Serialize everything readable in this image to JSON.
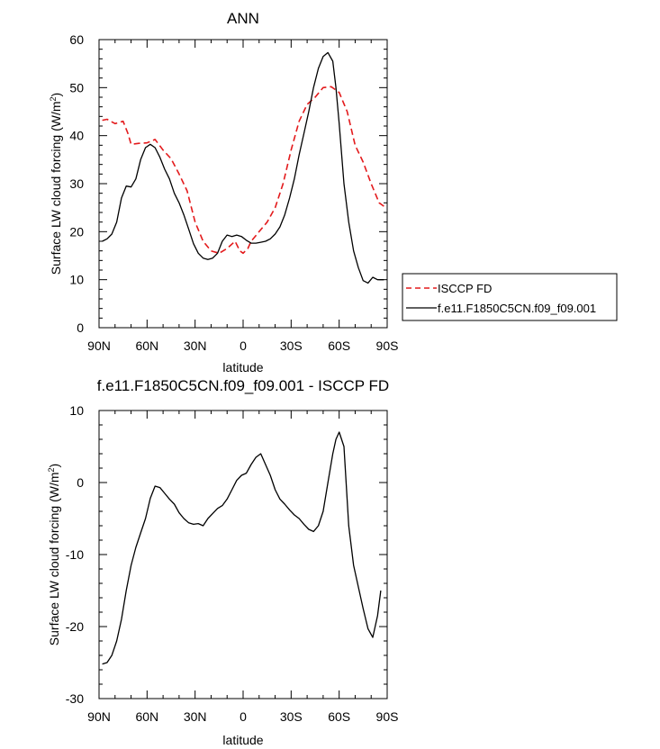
{
  "chart_data": [
    {
      "type": "line",
      "title": "ANN",
      "xlabel": "latitude",
      "ylabel": "Surface LW cloud forcing (W/m",
      "ylabel_sup": "2",
      "ylabel_close": ")",
      "xlim": [
        90,
        -90
      ],
      "ylim": [
        0,
        60
      ],
      "x_ticks": [
        90,
        60,
        30,
        0,
        -30,
        -60,
        -90
      ],
      "x_tick_labels": [
        "90N",
        "60N",
        "30N",
        "0",
        "30S",
        "60S",
        "90S"
      ],
      "y_ticks": [
        0,
        10,
        20,
        30,
        40,
        50,
        60
      ],
      "y_tick_labels": [
        "0",
        "10",
        "20",
        "30",
        "40",
        "50",
        "60"
      ],
      "legend_position": "right",
      "series": [
        {
          "name": "ISCCP FD",
          "color": "#e31a1c",
          "dash": "dashed",
          "x": [
            88,
            85,
            80,
            75,
            72,
            70,
            65,
            60,
            55,
            50,
            45,
            40,
            35,
            30,
            25,
            20,
            15,
            10,
            5,
            2,
            0,
            -3,
            -5,
            -10,
            -15,
            -20,
            -25,
            -30,
            -35,
            -40,
            -45,
            -50,
            -55,
            -60,
            -65,
            -70,
            -75,
            -80,
            -85,
            -88
          ],
          "values": [
            43.2,
            43.4,
            42.5,
            43.0,
            40.5,
            38.2,
            38.4,
            38.5,
            39.2,
            37.0,
            35.2,
            32.0,
            28.5,
            22.0,
            18.0,
            16.0,
            15.5,
            16.5,
            18.0,
            16.0,
            15.5,
            16.5,
            18.0,
            20.0,
            22.0,
            25.0,
            30.0,
            37.0,
            43.0,
            46.5,
            48.0,
            50.0,
            50.2,
            49.0,
            45.0,
            38.0,
            34.5,
            30.0,
            26.0,
            25.3
          ]
        },
        {
          "name": "f.e11.F1850C5CN.f09_f09.001",
          "color": "#000000",
          "dash": "solid",
          "x": [
            88,
            85,
            82,
            79,
            76,
            73,
            70,
            67,
            64,
            61,
            58,
            55,
            52,
            49,
            46,
            43,
            40,
            37,
            34,
            31,
            28,
            25,
            22,
            19,
            16,
            13,
            10,
            7,
            4,
            1,
            -2,
            -5,
            -8,
            -11,
            -14,
            -17,
            -20,
            -23,
            -26,
            -29,
            -32,
            -35,
            -38,
            -41,
            -44,
            -47,
            -50,
            -53,
            -56,
            -58,
            -60,
            -63,
            -66,
            -69,
            -72,
            -75,
            -78,
            -81,
            -84,
            -86,
            -88
          ],
          "values": [
            18.0,
            18.5,
            19.5,
            22.0,
            27.0,
            29.5,
            29.3,
            31.0,
            35.0,
            37.5,
            38.2,
            37.5,
            35.5,
            33.0,
            31.0,
            28.0,
            26.0,
            23.5,
            20.5,
            17.5,
            15.5,
            14.5,
            14.2,
            14.5,
            15.5,
            18.0,
            19.3,
            19.0,
            19.3,
            19.0,
            18.2,
            17.6,
            17.6,
            17.8,
            18.0,
            18.5,
            19.5,
            21.0,
            23.5,
            27.0,
            31.0,
            36.0,
            40.5,
            45.0,
            50.0,
            54.0,
            56.5,
            57.3,
            55.5,
            50.0,
            42.5,
            30.0,
            22.0,
            16.0,
            12.5,
            9.8,
            9.3,
            10.5,
            10.0,
            10.0,
            10.0
          ]
        }
      ]
    },
    {
      "type": "line",
      "title": "f.e11.F1850C5CN.f09_f09.001 - ISCCP FD",
      "xlabel": "latitude",
      "ylabel": "Surface LW cloud forcing (W/m",
      "ylabel_sup": "2",
      "ylabel_close": ")",
      "xlim": [
        90,
        -90
      ],
      "ylim": [
        -30,
        10
      ],
      "x_ticks": [
        90,
        60,
        30,
        0,
        -30,
        -60,
        -90
      ],
      "x_tick_labels": [
        "90N",
        "60N",
        "30N",
        "0",
        "30S",
        "60S",
        "90S"
      ],
      "y_ticks": [
        -30,
        -20,
        -10,
        0,
        10
      ],
      "y_tick_labels": [
        "-30",
        "-20",
        "-10",
        "0",
        "10"
      ],
      "series": [
        {
          "color": "#000000",
          "dash": "solid",
          "x": [
            88,
            85,
            82,
            79,
            76,
            73,
            70,
            67,
            64,
            61,
            58,
            55,
            52,
            49,
            46,
            43,
            40,
            37,
            34,
            31,
            28,
            25,
            22,
            19,
            16,
            13,
            10,
            7,
            4,
            1,
            -2,
            -5,
            -8,
            -11,
            -14,
            -17,
            -20,
            -23,
            -26,
            -29,
            -32,
            -35,
            -38,
            -41,
            -44,
            -47,
            -50,
            -53,
            -56,
            -58,
            -60,
            -63,
            -66,
            -69,
            -72,
            -75,
            -78,
            -81,
            -84,
            -86
          ],
          "values": [
            -25.2,
            -25.0,
            -24.0,
            -22.0,
            -19.0,
            -15.0,
            -11.5,
            -9.0,
            -7.0,
            -5.0,
            -2.2,
            -0.5,
            -0.7,
            -1.5,
            -2.3,
            -3.0,
            -4.2,
            -5.0,
            -5.6,
            -5.8,
            -5.7,
            -6.0,
            -5.0,
            -4.3,
            -3.6,
            -3.2,
            -2.3,
            -1.0,
            0.3,
            1.0,
            1.3,
            2.5,
            3.5,
            4.0,
            2.5,
            1.0,
            -1.0,
            -2.3,
            -3.0,
            -3.8,
            -4.5,
            -5.0,
            -5.8,
            -6.5,
            -6.8,
            -6.0,
            -4.0,
            0.0,
            4.0,
            6.0,
            7.0,
            5.0,
            -6.0,
            -11.5,
            -14.5,
            -17.5,
            -20.3,
            -21.5,
            -18.5,
            -15.0
          ]
        }
      ]
    }
  ]
}
